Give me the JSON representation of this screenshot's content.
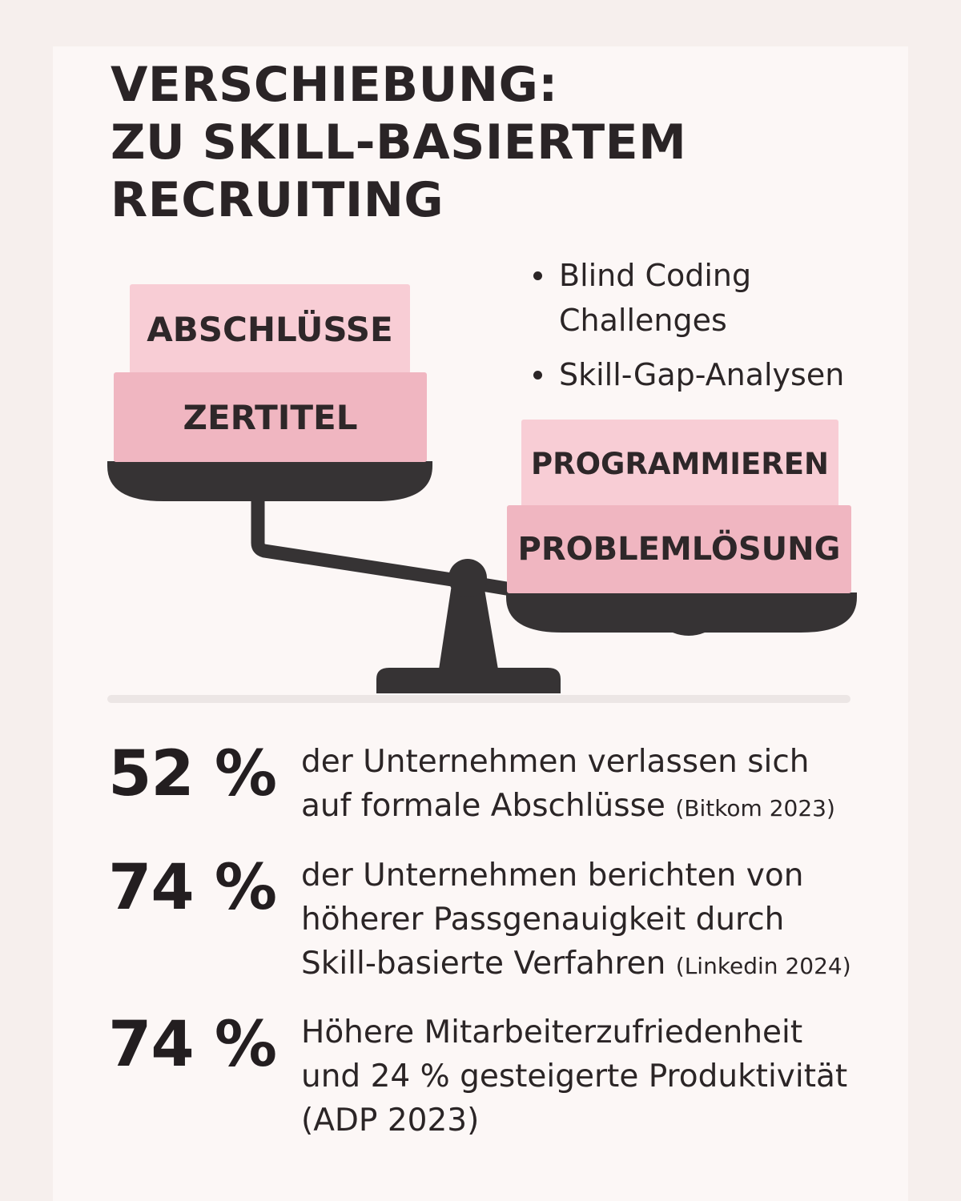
{
  "title": {
    "line1": "VERSCHIEBUNG:",
    "line2": "ZU SKILL-BASIERTEM",
    "line3": "RECRUITING"
  },
  "bullets": [
    {
      "line1": "Blind Coding",
      "line2": "Challenges"
    },
    {
      "line1": "Skill-Gap-Analysen",
      "line2": ""
    }
  ],
  "scale": {
    "left_blocks": [
      "ABSCHLÜSSE",
      "ZERTITEL"
    ],
    "right_blocks": [
      "PROGRAMMIEREN",
      "PROBLEMLÖSUNG"
    ],
    "colors": {
      "block_light": "#f8cdd5",
      "block_mid": "#f0b6c1",
      "scale_dark": "#363334"
    }
  },
  "stats": [
    {
      "value": "52 %",
      "text": "der Unternehmen verlassen sich auf formale Abschlüsse",
      "source": "(Bitkom 2023)"
    },
    {
      "value": "74 %",
      "text": "der Unternehmen berichten von höherer Passgenauigkeit durch Skill-basierte Verfahren",
      "source": "(Linkedin 2024)"
    },
    {
      "value": "74 %",
      "text": "Höhere Mitarbeiterzufriedenheit und 24 % gesteigerte Produktivität",
      "source": "(ADP 2023)"
    }
  ]
}
